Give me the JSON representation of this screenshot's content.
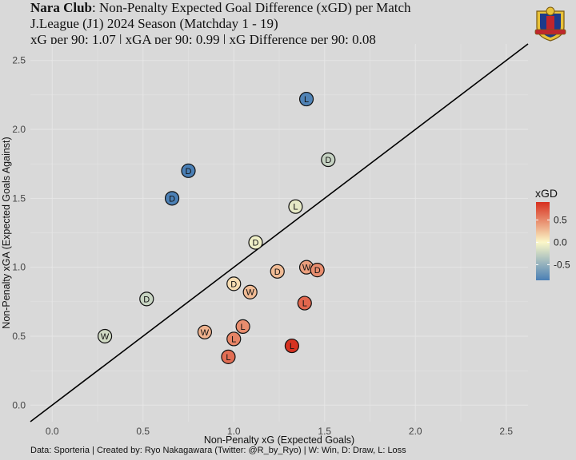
{
  "header": {
    "club": "Nara Club",
    "title_rest": ": Non-Penalty Expected Goal Difference (xGD) per Match",
    "subtitle": "J.League (J1) 2024 Season (Matchday 1 - 19)",
    "stats": "xG per 90: 1.07 | xGA per 90: 0.99 | xG Difference per 90: 0.08"
  },
  "caption": "Data: Sporteria | Created by: Ryo Nakagawara (Twitter: @R_by_Ryo) | W: Win, D: Draw, L: Loss",
  "logo_icon": "club-crest-icon",
  "colors": {
    "background": "#d9d9d9",
    "gridline": "#e6e6e6",
    "low": "#4a7fb5",
    "mid": "#fbf7c8",
    "high": "#d7301f"
  },
  "chart_data": {
    "type": "scatter",
    "xlabel": "Non-Penalty xG (Expected Goals)",
    "ylabel": "Non-Penalty xGA (Expected Goals Against)",
    "xlim": [
      -0.12,
      2.62
    ],
    "ylim": [
      -0.12,
      2.62
    ],
    "x_ticks": [
      0.0,
      0.5,
      1.0,
      1.5,
      2.0,
      2.5
    ],
    "y_ticks": [
      0.0,
      0.5,
      1.0,
      1.5,
      2.0,
      2.5
    ],
    "x_tick_labels": [
      "0.0",
      "0.5",
      "1.0",
      "1.5",
      "2.0",
      "2.5"
    ],
    "y_tick_labels": [
      "0.0",
      "0.5",
      "1.0",
      "1.5",
      "2.0",
      "2.5"
    ],
    "grid": true,
    "reference_line": "y = x",
    "legend": {
      "title": "xGD",
      "position": "right",
      "ticks": [
        0.5,
        0.0,
        -0.5
      ],
      "tick_labels": [
        "0.5",
        "0.0",
        "-0.5"
      ],
      "range": [
        -0.85,
        0.9
      ]
    },
    "points": [
      {
        "x": 1.4,
        "y": 2.22,
        "result": "L"
      },
      {
        "x": 1.52,
        "y": 1.78,
        "result": "D"
      },
      {
        "x": 0.75,
        "y": 1.7,
        "result": "D"
      },
      {
        "x": 0.66,
        "y": 1.5,
        "result": "D"
      },
      {
        "x": 1.34,
        "y": 1.44,
        "result": "L"
      },
      {
        "x": 1.12,
        "y": 1.18,
        "result": "D"
      },
      {
        "x": 1.4,
        "y": 1.0,
        "result": "W"
      },
      {
        "x": 1.46,
        "y": 0.98,
        "result": "D"
      },
      {
        "x": 1.24,
        "y": 0.97,
        "result": "D"
      },
      {
        "x": 1.0,
        "y": 0.88,
        "result": "D"
      },
      {
        "x": 1.09,
        "y": 0.82,
        "result": "W"
      },
      {
        "x": 0.52,
        "y": 0.77,
        "result": "D"
      },
      {
        "x": 1.39,
        "y": 0.74,
        "result": "L"
      },
      {
        "x": 1.05,
        "y": 0.57,
        "result": "L"
      },
      {
        "x": 0.84,
        "y": 0.53,
        "result": "W"
      },
      {
        "x": 0.29,
        "y": 0.5,
        "result": "W"
      },
      {
        "x": 1.0,
        "y": 0.48,
        "result": "L"
      },
      {
        "x": 1.32,
        "y": 0.43,
        "result": "L"
      },
      {
        "x": 0.97,
        "y": 0.35,
        "result": "L"
      }
    ]
  }
}
